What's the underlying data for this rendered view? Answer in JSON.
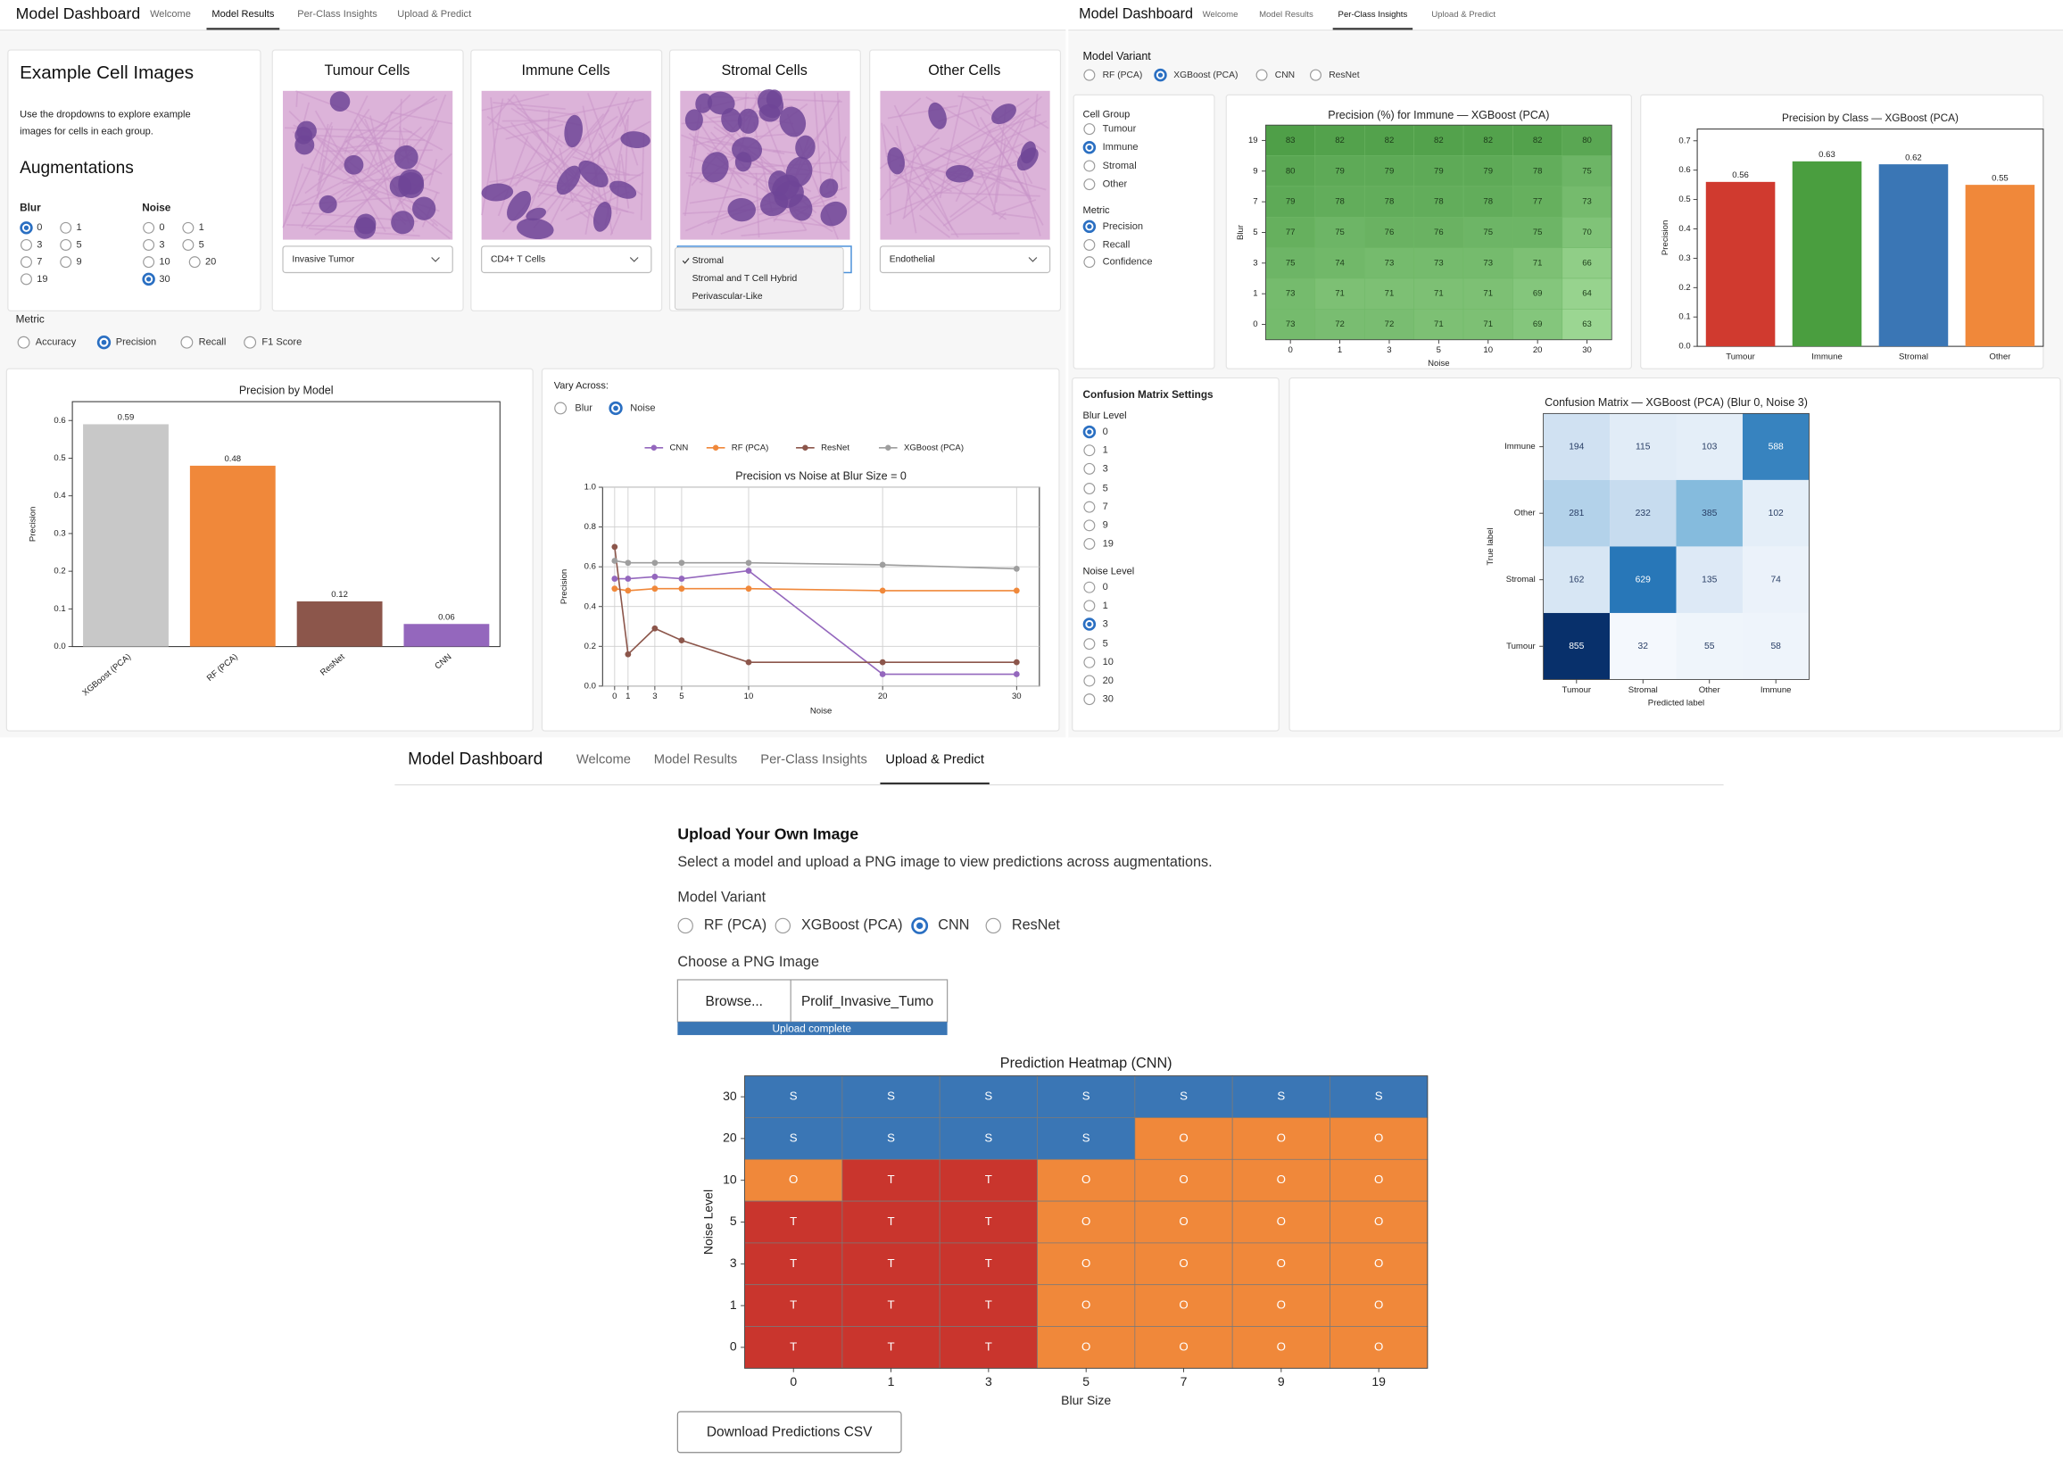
{
  "model_results": {
    "nav": {
      "brand": "Model Dashboard",
      "tabs": [
        "Welcome",
        "Model Results",
        "Per-Class Insights",
        "Upload & Predict"
      ],
      "active": "Model Results"
    },
    "examples": {
      "title": "Example Cell Images",
      "description": "Use the dropdowns to explore example images for cells in each group.",
      "augmentations": "Augmentations",
      "blur": {
        "label": "Blur",
        "options": [
          0,
          1,
          3,
          5,
          7,
          9,
          19
        ],
        "selected": 0
      },
      "noise": {
        "label": "Noise",
        "options": [
          0,
          1,
          3,
          5,
          10,
          20,
          30
        ],
        "selected": 30
      }
    },
    "cell_cards": [
      {
        "title": "Tumour Cells",
        "selected": "Invasive Tumor"
      },
      {
        "title": "Immune Cells",
        "selected": "CD4+ T Cells"
      },
      {
        "title": "Stromal Cells",
        "options": [
          "Stromal",
          "Stromal and T Cell Hybrid",
          "Perivascular-Like"
        ],
        "selected": "Stromal"
      },
      {
        "title": "Other Cells",
        "selected": "Endothelial"
      }
    ],
    "metric": {
      "label": "Metric",
      "options": [
        "Accuracy",
        "Precision",
        "Recall",
        "F1 Score"
      ],
      "selected": "Precision"
    },
    "model_chart": {
      "type": "bar",
      "title": "Precision by Model",
      "y_label": "Precision",
      "categories": [
        "XGBoost (PCA)",
        "RF (PCA)",
        "ResNet",
        "CNN"
      ],
      "values": [
        0.59,
        0.48,
        0.12,
        0.06
      ],
      "colors": [
        "#c8c8c8",
        "#f0883a",
        "#8c564b",
        "#9467bd"
      ],
      "ylim": [
        0,
        0.65
      ],
      "yticks": [
        {
          "value": 0,
          "label": "0.0"
        },
        0.1,
        0.2,
        0.3,
        0.4,
        0.5,
        0.6
      ]
    },
    "vary": {
      "label": "Vary Across:",
      "options": [
        "Blur",
        "Noise"
      ],
      "selected": "Noise"
    },
    "line_chart": {
      "type": "line",
      "title": "Precision vs Noise at Blur Size = 0",
      "x_label": "Noise",
      "y_label": "Precision",
      "x": [
        0,
        1,
        3,
        5,
        10,
        20,
        30
      ],
      "series": [
        {
          "name": "CNN",
          "color": "#9467bd",
          "values": [
            0.54,
            0.54,
            0.55,
            0.54,
            0.58,
            0.06,
            0.06
          ]
        },
        {
          "name": "RF (PCA)",
          "color": "#f0883a",
          "values": [
            0.49,
            0.48,
            0.49,
            0.49,
            0.49,
            0.48,
            0.48
          ]
        },
        {
          "name": "ResNet",
          "color": "#8c564b",
          "values": [
            0.7,
            0.16,
            0.29,
            0.23,
            0.12,
            0.12,
            0.12
          ]
        },
        {
          "name": "XGBoost (PCA)",
          "color": "#9e9e9e",
          "values": [
            0.63,
            0.62,
            0.62,
            0.62,
            0.62,
            0.61,
            0.59
          ]
        }
      ],
      "xlim": [
        -0.9,
        31.7
      ],
      "xticks": [
        0,
        1,
        3,
        5,
        10,
        20,
        30
      ],
      "ylim": [
        0,
        1
      ],
      "yticks": [
        {
          "value": 0,
          "label": "0.0"
        },
        0.2,
        0.4,
        0.6,
        0.8,
        {
          "value": 1,
          "label": "1.0"
        }
      ],
      "grid": true
    }
  },
  "per_class": {
    "nav": {
      "brand": "Model Dashboard",
      "tabs": [
        "Welcome",
        "Model Results",
        "Per-Class Insights",
        "Upload & Predict"
      ],
      "active": "Per-Class Insights"
    },
    "model_variant": {
      "label": "Model Variant",
      "options": [
        "RF (PCA)",
        "XGBoost (PCA)",
        "CNN",
        "ResNet"
      ],
      "selected": "XGBoost (PCA)"
    },
    "cell_group": {
      "label": "Cell Group",
      "options": [
        "Tumour",
        "Immune",
        "Stromal",
        "Other"
      ],
      "selected": "Immune"
    },
    "metric": {
      "label": "Metric",
      "options": [
        "Precision",
        "Recall",
        "Confidence"
      ],
      "selected": "Precision"
    },
    "heatmap": {
      "type": "heatmap",
      "title": "Precision (%) for Immune — XGBoost (PCA)",
      "x_label": "Noise",
      "y_label": "Blur",
      "x": [
        0,
        1,
        3,
        5,
        10,
        20,
        30
      ],
      "y": [
        19,
        9,
        7,
        5,
        3,
        1,
        0
      ],
      "values": [
        [
          83,
          82,
          82,
          82,
          82,
          82,
          80
        ],
        [
          80,
          79,
          79,
          79,
          79,
          78,
          75
        ],
        [
          79,
          78,
          78,
          78,
          78,
          77,
          73
        ],
        [
          77,
          75,
          76,
          76,
          75,
          75,
          70
        ],
        [
          75,
          74,
          73,
          73,
          73,
          71,
          66
        ],
        [
          73,
          71,
          71,
          71,
          71,
          69,
          64
        ],
        [
          73,
          72,
          72,
          71,
          71,
          69,
          63
        ]
      ],
      "colormap": "Greens"
    },
    "class_chart": {
      "type": "bar",
      "title": "Precision by Class — XGBoost (PCA)",
      "y_label": "Precision",
      "categories": [
        "Tumour",
        "Immune",
        "Stromal",
        "Other"
      ],
      "values": [
        0.56,
        0.63,
        0.62,
        0.55
      ],
      "colors": [
        "#d03a2f",
        "#4a9e3f",
        "#3a76b5",
        "#f0883a"
      ],
      "ylim": [
        0,
        0.74
      ],
      "yticks": [
        {
          "value": 0,
          "label": "0.0"
        },
        0.1,
        0.2,
        0.3,
        0.4,
        0.5,
        0.6,
        0.7
      ]
    },
    "cm_settings": {
      "title": "Confusion Matrix Settings",
      "blur": {
        "label": "Blur Level",
        "options": [
          0,
          1,
          3,
          5,
          7,
          9,
          19
        ],
        "selected": 0
      },
      "noise": {
        "label": "Noise Level",
        "options": [
          0,
          1,
          3,
          5,
          10,
          20,
          30
        ],
        "selected": 3
      }
    },
    "confusion": {
      "type": "heatmap",
      "title": "Confusion Matrix — XGBoost (PCA) (Blur 0, Noise 3)",
      "x_label": "Predicted label",
      "y_label": "True label",
      "x": [
        "Tumour",
        "Stromal",
        "Other",
        "Immune"
      ],
      "y": [
        "Immune",
        "Other",
        "Stromal",
        "Tumour"
      ],
      "values": [
        [
          194,
          115,
          103,
          588
        ],
        [
          281,
          232,
          385,
          102
        ],
        [
          162,
          629,
          135,
          74
        ],
        [
          855,
          32,
          55,
          58
        ]
      ],
      "colormap": "Blues"
    }
  },
  "upload": {
    "nav": {
      "brand": "Model Dashboard",
      "tabs": [
        "Welcome",
        "Model Results",
        "Per-Class Insights",
        "Upload & Predict"
      ],
      "active": "Upload & Predict"
    },
    "title": "Upload Your Own Image",
    "description": "Select a model and upload a PNG image to view predictions across augmentations.",
    "model_variant": {
      "label": "Model Variant",
      "options": [
        "RF (PCA)",
        "XGBoost (PCA)",
        "CNN",
        "ResNet"
      ],
      "selected": "CNN"
    },
    "file_label": "Choose a PNG Image",
    "browse": "Browse...",
    "file_name": "Prolif_Invasive_Tumo",
    "progress": "Upload complete",
    "prediction": {
      "type": "heatmap",
      "title": "Prediction Heatmap (CNN)",
      "x_label": "Blur Size",
      "y_label": "Noise Level",
      "x": [
        0,
        1,
        3,
        5,
        7,
        9,
        19
      ],
      "y": [
        30,
        20,
        10,
        5,
        3,
        1,
        0
      ],
      "labels": [
        [
          "S",
          "S",
          "S",
          "S",
          "S",
          "S",
          "S"
        ],
        [
          "S",
          "S",
          "S",
          "S",
          "O",
          "O",
          "O"
        ],
        [
          "O",
          "T",
          "T",
          "O",
          "O",
          "O",
          "O"
        ],
        [
          "T",
          "T",
          "T",
          "O",
          "O",
          "O",
          "O"
        ],
        [
          "T",
          "T",
          "T",
          "O",
          "O",
          "O",
          "O"
        ],
        [
          "T",
          "T",
          "T",
          "O",
          "O",
          "O",
          "O"
        ],
        [
          "T",
          "T",
          "T",
          "O",
          "O",
          "O",
          "O"
        ]
      ],
      "colors": {
        "S": "#3a76b5",
        "O": "#f0883a",
        "T": "#c9352d"
      }
    },
    "download": "Download Predictions CSV"
  }
}
